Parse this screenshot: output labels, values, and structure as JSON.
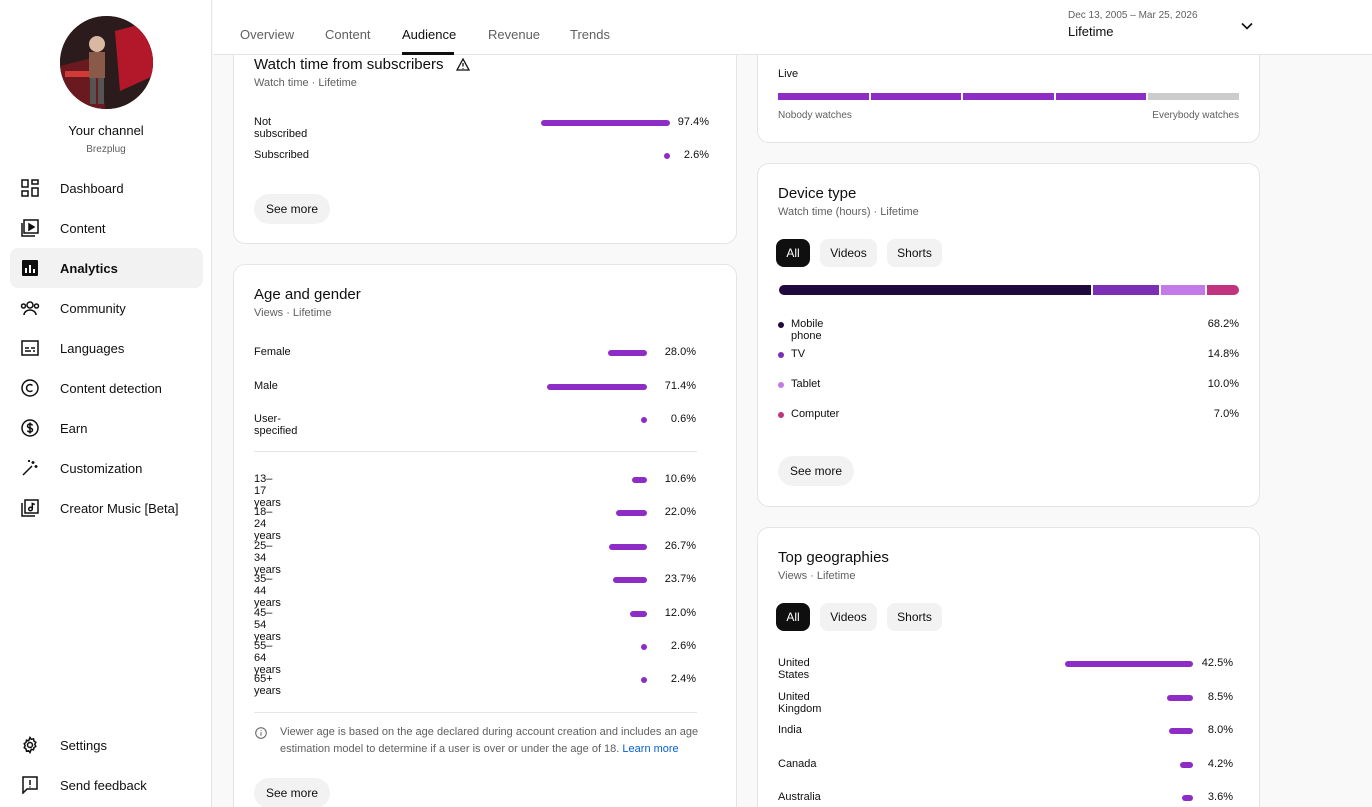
{
  "sidebar": {
    "channel_title": "Your channel",
    "channel_handle": "Brezplug",
    "items": [
      {
        "label": "Dashboard",
        "icon": "dashboard-icon"
      },
      {
        "label": "Content",
        "icon": "content-icon"
      },
      {
        "label": "Analytics",
        "icon": "analytics-icon",
        "active": true
      },
      {
        "label": "Community",
        "icon": "community-icon"
      },
      {
        "label": "Languages",
        "icon": "languages-icon"
      },
      {
        "label": "Content detection",
        "icon": "copyright-icon"
      },
      {
        "label": "Earn",
        "icon": "dollar-icon"
      },
      {
        "label": "Customization",
        "icon": "magic-wand-icon"
      },
      {
        "label": "Creator Music [Beta]",
        "icon": "music-icon"
      }
    ],
    "bottom_items": [
      {
        "label": "Settings",
        "icon": "gear-icon"
      },
      {
        "label": "Send feedback",
        "icon": "feedback-icon"
      }
    ]
  },
  "tabs": [
    {
      "label": "Overview"
    },
    {
      "label": "Content"
    },
    {
      "label": "Audience",
      "active": true
    },
    {
      "label": "Revenue"
    },
    {
      "label": "Trends"
    }
  ],
  "date_range": {
    "dates": "Dec 13, 2005 – Mar 25, 2026",
    "label": "Lifetime"
  },
  "watch_time_subscribers": {
    "title": "Watch time from subscribers",
    "subtitle": "Watch time · Lifetime",
    "rows": [
      {
        "label": "Not subscribed",
        "value": "97.4%",
        "fraction": 0.974
      },
      {
        "label": "Subscribed",
        "value": "2.6%",
        "fraction": 0.026
      }
    ],
    "see_more": "See more"
  },
  "age_gender": {
    "title": "Age and gender",
    "subtitle": "Views · Lifetime",
    "gender": [
      {
        "label": "Female",
        "value": "28.0%",
        "fraction": 0.28
      },
      {
        "label": "Male",
        "value": "71.4%",
        "fraction": 0.714
      },
      {
        "label": "User-specified",
        "value": "0.6%",
        "fraction": 0.006
      }
    ],
    "ages": [
      {
        "label": "13–17 years",
        "value": "10.6%",
        "fraction": 0.106
      },
      {
        "label": "18–24 years",
        "value": "22.0%",
        "fraction": 0.22
      },
      {
        "label": "25–34 years",
        "value": "26.7%",
        "fraction": 0.267
      },
      {
        "label": "35–44 years",
        "value": "23.7%",
        "fraction": 0.237
      },
      {
        "label": "45–54 years",
        "value": "12.0%",
        "fraction": 0.12
      },
      {
        "label": "55–64 years",
        "value": "2.6%",
        "fraction": 0.026
      },
      {
        "label": "65+ years",
        "value": "2.4%",
        "fraction": 0.024
      }
    ],
    "note_text": "Viewer age is based on the age declared during account creation and includes an age estimation model to determine if a user is over or under the age of 18.",
    "note_link": "Learn more",
    "see_more": "See more"
  },
  "live_card": {
    "label": "Live",
    "left_label": "Nobody watches",
    "right_label": "Everybody watches",
    "filled_segments": 4,
    "total_segments": 5
  },
  "device_type": {
    "title": "Device type",
    "subtitle": "Watch time (hours) · Lifetime",
    "chips": [
      {
        "label": "All",
        "active": true
      },
      {
        "label": "Videos"
      },
      {
        "label": "Shorts"
      }
    ],
    "items": [
      {
        "label": "Mobile phone",
        "value": "68.2%",
        "fraction": 0.682,
        "color": "#1f0a3d"
      },
      {
        "label": "TV",
        "value": "14.8%",
        "fraction": 0.148,
        "color": "#7b2fb5"
      },
      {
        "label": "Tablet",
        "value": "10.0%",
        "fraction": 0.1,
        "color": "#c27ae8"
      },
      {
        "label": "Computer",
        "value": "7.0%",
        "fraction": 0.07,
        "color": "#c2337e"
      }
    ],
    "see_more": "See more"
  },
  "top_geographies": {
    "title": "Top geographies",
    "subtitle": "Views · Lifetime",
    "chips": [
      {
        "label": "All",
        "active": true
      },
      {
        "label": "Videos"
      },
      {
        "label": "Shorts"
      }
    ],
    "rows": [
      {
        "label": "United States",
        "value": "42.5%",
        "fraction": 0.425
      },
      {
        "label": "United Kingdom",
        "value": "8.5%",
        "fraction": 0.085
      },
      {
        "label": "India",
        "value": "8.0%",
        "fraction": 0.08
      },
      {
        "label": "Canada",
        "value": "4.2%",
        "fraction": 0.042
      },
      {
        "label": "Australia",
        "value": "3.6%",
        "fraction": 0.036
      }
    ]
  },
  "colors": {
    "accent": "#8e2dc5",
    "link": "#065fd4"
  }
}
